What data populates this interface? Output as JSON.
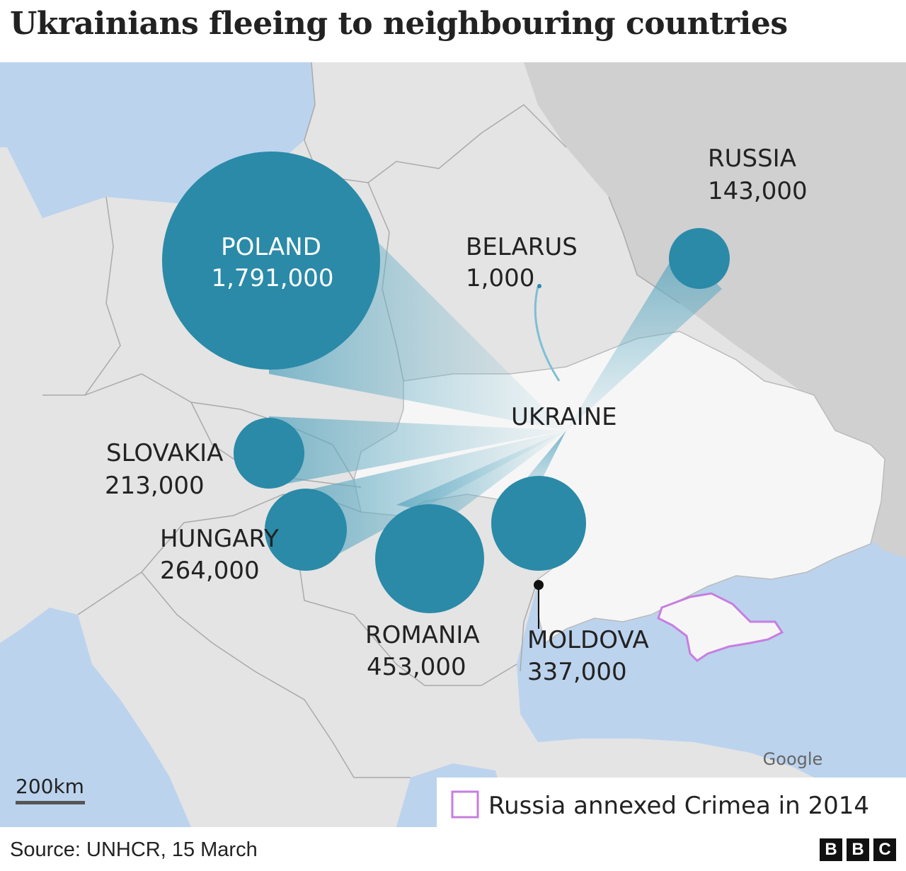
{
  "title": "Ukrainians fleeing to neighbouring countries",
  "countries": [
    {
      "name": "POLAND",
      "value": "1,791,000"
    },
    {
      "name": "BELARUS",
      "value": "1,000"
    },
    {
      "name": "RUSSIA",
      "value": "143,000"
    },
    {
      "name": "SLOVAKIA",
      "value": "213,000"
    },
    {
      "name": "HUNGARY",
      "value": "264,000"
    },
    {
      "name": "ROMANIA",
      "value": "453,000"
    },
    {
      "name": "MOLDOVA",
      "value": "337,000"
    }
  ],
  "origin_label": "UKRAINE",
  "scale_label": "200km",
  "map_credit": "Google",
  "legend": {
    "label": "Russia annexed Crimea in 2014",
    "swatch_color": "#c77ee0"
  },
  "source": "Source: UNHCR, 15 March",
  "logo": [
    "B",
    "B",
    "C"
  ],
  "colors": {
    "bubble": "#2a8aa8",
    "flow": "#7fbfd4",
    "sea": "#bcd3ed",
    "land": "#e4e4e4",
    "ukraine": "#f6f6f6",
    "russia": "#cfcfcf"
  }
}
